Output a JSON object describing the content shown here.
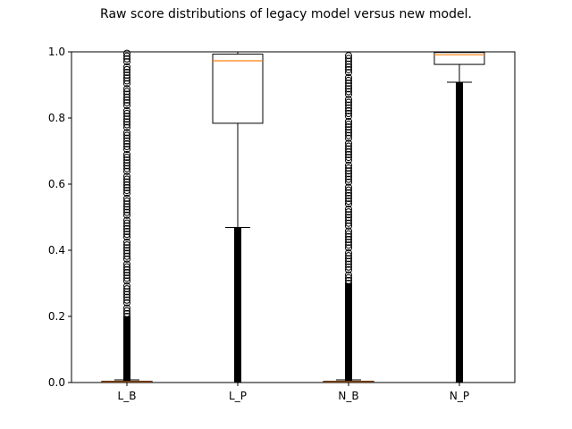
{
  "chart_data": {
    "type": "boxplot",
    "title": "Raw score distributions of legacy model versus new model.",
    "xlabel": "",
    "ylabel": "",
    "ylim": [
      0,
      1
    ],
    "yticks": [
      "0.0",
      "0.2",
      "0.4",
      "0.6",
      "0.8",
      "1.0"
    ],
    "categories": [
      "L_B",
      "L_P",
      "N_B",
      "N_P"
    ],
    "boxes": [
      {
        "label": "L_B",
        "q1": 0.0,
        "median": 0.002,
        "q3": 0.004,
        "whisker_low": 0.0,
        "whisker_high": 0.008,
        "outliers_solid_to": 0.2,
        "outliers_sparse_to": 1.0
      },
      {
        "label": "L_P",
        "q1": 0.784,
        "median": 0.973,
        "q3": 0.993,
        "whisker_low": 0.469,
        "whisker_high": 1.0,
        "outliers_solid_to": 0.469,
        "outliers_sparse_to": 0.469
      },
      {
        "label": "N_B",
        "q1": 0.0,
        "median": 0.002,
        "q3": 0.004,
        "whisker_low": 0.0,
        "whisker_high": 0.008,
        "outliers_solid_to": 0.3,
        "outliers_sparse_to": 1.0
      },
      {
        "label": "N_P",
        "q1": 0.962,
        "median": 0.991,
        "q3": 0.998,
        "whisker_low": 0.908,
        "whisker_high": 1.0,
        "outliers_solid_to": 0.908,
        "outliers_sparse_to": 0.908
      }
    ],
    "grid": false,
    "colors": {
      "box": "#000000",
      "median": "#ff7f0e",
      "outlier": "#000000"
    }
  }
}
